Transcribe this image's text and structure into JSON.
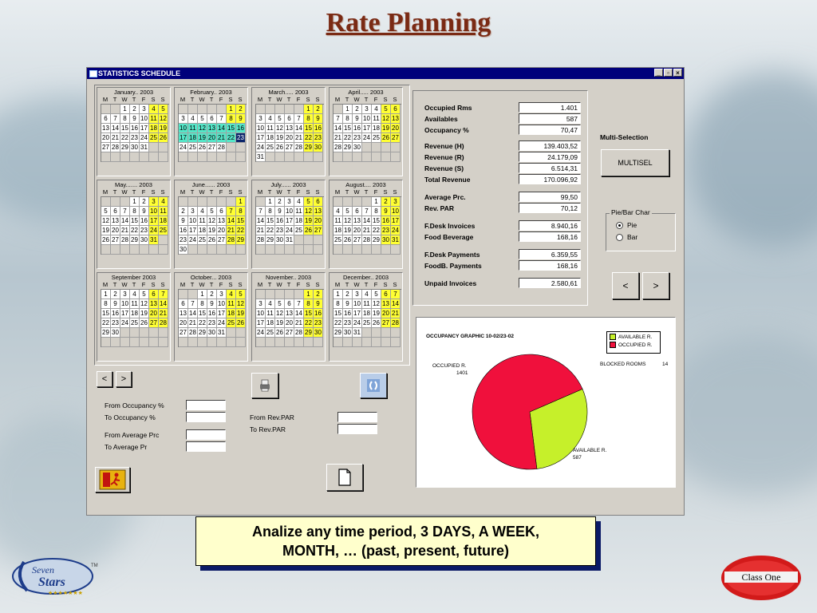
{
  "slide": {
    "title": "Rate Planning",
    "caption_line1": "Analize any time period, 3 DAYS, A WEEK,",
    "caption_line2": "MONTH, … (past, present, future)"
  },
  "window": {
    "title": "STATISTICS SCHEDULE",
    "minimize": "_",
    "restore": "▫",
    "close": "×"
  },
  "dow": [
    "M",
    "T",
    "W",
    "T",
    "F",
    "S",
    "S"
  ],
  "months": [
    {
      "title": "January.. 2003",
      "offset": 2,
      "days": 31,
      "selected": [],
      "current": null
    },
    {
      "title": "February.. 2003",
      "offset": 5,
      "days": 28,
      "selected": [
        10,
        11,
        12,
        13,
        14,
        15,
        16,
        17,
        18,
        19,
        20,
        21,
        22
      ],
      "current": 23
    },
    {
      "title": "March..... 2003",
      "offset": 5,
      "days": 31,
      "selected": [],
      "current": null
    },
    {
      "title": "April..... 2003",
      "offset": 1,
      "days": 30,
      "selected": [],
      "current": null
    },
    {
      "title": "May....... 2003",
      "offset": 3,
      "days": 31,
      "selected": [],
      "current": null
    },
    {
      "title": "June...... 2003",
      "offset": 6,
      "days": 30,
      "selected": [],
      "current": null
    },
    {
      "title": "July...... 2003",
      "offset": 1,
      "days": 31,
      "selected": [],
      "current": null
    },
    {
      "title": "August.... 2003",
      "offset": 4,
      "days": 31,
      "selected": [],
      "current": null
    },
    {
      "title": "September  2003",
      "offset": 0,
      "days": 30,
      "selected": [],
      "current": null
    },
    {
      "title": "October... 2003",
      "offset": 2,
      "days": 31,
      "selected": [],
      "current": null
    },
    {
      "title": "November.. 2003",
      "offset": 5,
      "days": 30,
      "selected": [],
      "current": null
    },
    {
      "title": "December.. 2003",
      "offset": 0,
      "days": 31,
      "selected": [],
      "current": null
    }
  ],
  "stats": [
    {
      "label": "Occupied Rms",
      "value": "1.401"
    },
    {
      "label": "Availables",
      "value": "587"
    },
    {
      "label": "Occupancy %",
      "value": "70,47"
    },
    {
      "label": "Revenue (H)",
      "value": "139.403,52"
    },
    {
      "label": "Revenue (R)",
      "value": "24.179,09"
    },
    {
      "label": "Revenue (S)",
      "value": "6.514,31"
    },
    {
      "label": "Total Revenue",
      "value": "170.096,92"
    },
    {
      "label": "Average Prc.",
      "value": "99,50"
    },
    {
      "label": "Rev. PAR",
      "value": "70,12"
    },
    {
      "label": "F.Desk Invoices",
      "value": "8.940,16"
    },
    {
      "label": "Food  Beverage",
      "value": "168,16"
    },
    {
      "label": "F.Desk Payments",
      "value": "6.359,55"
    },
    {
      "label": "FoodB. Payments",
      "value": "168,16"
    },
    {
      "label": "Unpaid Invoices",
      "value": "2.580,61"
    }
  ],
  "multi": {
    "label": "Multi-Selection",
    "button": "MULTISEL"
  },
  "piebar": {
    "title": "Pie/Bar Char",
    "opt1": "Pie",
    "opt2": "Bar",
    "selected": "Pie"
  },
  "nav": {
    "prev": "<",
    "next": ">"
  },
  "filters": {
    "from_occ": "From Occupancy %",
    "to_occ": "To     Occupancy %",
    "from_avg": "From Average Prc",
    "to_avg": "To     Average Pr",
    "from_rev": "From Rev.PAR",
    "to_rev": "To     Rev.PAR"
  },
  "graph": {
    "title": "OCCUPANCY GRAPHIC    10-02/23-02",
    "legend_available": "AVAILABLE R.",
    "legend_occupied": "OCCUPIED R.",
    "blocked_label": "BLOCKED ROOMS",
    "blocked_value": "14",
    "occ_label": "OCCUPIED R.",
    "occ_value": "1401",
    "avail_label": "AVAILABLE R.",
    "avail_value": "587",
    "colors": {
      "occupied": "#f0103c",
      "available": "#c6f02a"
    }
  },
  "chart_data": {
    "type": "pie",
    "title": "OCCUPANCY GRAPHIC    10-02/23-02",
    "categories": [
      "OCCUPIED R.",
      "AVAILABLE R."
    ],
    "values": [
      1401,
      587
    ]
  },
  "logos": {
    "left_top": "Seven",
    "left_bottom": "Stars",
    "left_tm": "TM",
    "right": "Class One"
  }
}
